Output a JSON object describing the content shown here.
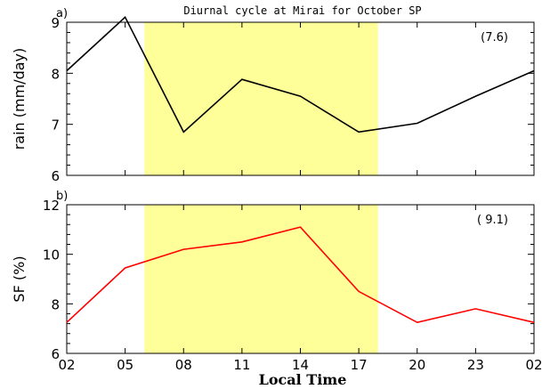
{
  "chart_data": [
    {
      "type": "line",
      "title": "Diurnal cycle at Mirai for October SP",
      "panel_label": "a)",
      "ylabel": "rain (mm/day)",
      "annotation": "(7.6)",
      "x": [
        "02",
        "05",
        "08",
        "11",
        "14",
        "17",
        "20",
        "23",
        "02"
      ],
      "xlim": [
        0,
        8
      ],
      "ylim": [
        6,
        9
      ],
      "yticks": [
        6,
        7,
        8,
        9
      ],
      "shaded_x": [
        1.33,
        5.33
      ],
      "shade_color": "#ffff99",
      "series": [
        {
          "color": "#000000",
          "values": [
            8.05,
            9.1,
            6.85,
            7.88,
            7.55,
            6.85,
            7.02,
            7.55,
            8.05
          ]
        }
      ]
    },
    {
      "type": "line",
      "panel_label": "b)",
      "ylabel": "SF (%)",
      "xlabel": "Local Time",
      "annotation": "( 9.1)",
      "x": [
        "02",
        "05",
        "08",
        "11",
        "14",
        "17",
        "20",
        "23",
        "02"
      ],
      "xlim": [
        0,
        8
      ],
      "ylim": [
        6,
        12
      ],
      "yticks": [
        6,
        8,
        10,
        12
      ],
      "shaded_x": [
        1.33,
        5.33
      ],
      "shade_color": "#ffff99",
      "series": [
        {
          "color": "#ff0000",
          "values": [
            7.25,
            9.45,
            10.2,
            10.5,
            11.1,
            8.5,
            7.25,
            7.8,
            7.25
          ]
        }
      ]
    }
  ]
}
